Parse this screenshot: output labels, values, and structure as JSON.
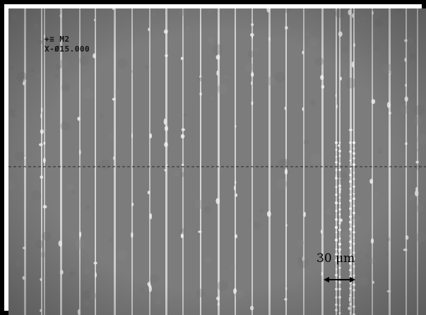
{
  "micrograph": {
    "overlay_line_1": "+≡ M2",
    "overlay_line_2": "X-Ø15.000",
    "scale_bar_label": "30 μm",
    "colors": {
      "background": "#7c7c7c",
      "stripe": "#d8d8d8",
      "frame": "#000000",
      "crosshair": "#222222"
    }
  }
}
